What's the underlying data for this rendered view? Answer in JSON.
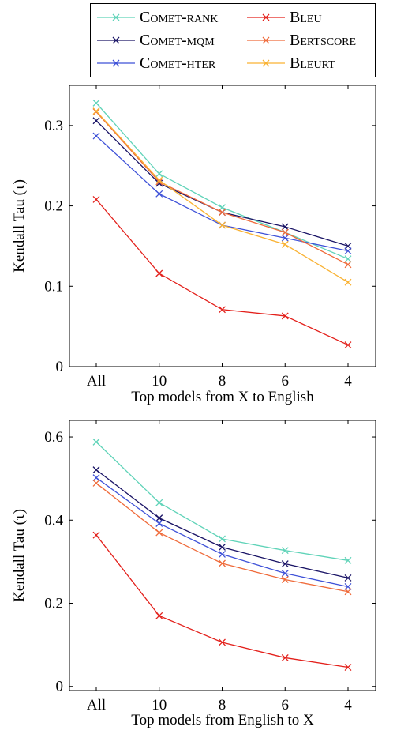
{
  "legend": {
    "items": [
      {
        "label": "Comet-rank",
        "color": "#5fd3b8"
      },
      {
        "label": "Comet-mqm",
        "color": "#1a1466"
      },
      {
        "label": "Comet-hter",
        "color": "#3f52d8"
      },
      {
        "label": "Bleu",
        "color": "#e3201b"
      },
      {
        "label": "Bertscore",
        "color": "#ef6a3a"
      },
      {
        "label": "Bleurt",
        "color": "#f9b233"
      }
    ]
  },
  "chart_data": [
    {
      "type": "line",
      "categories": [
        "All",
        "10",
        "8",
        "6",
        "4"
      ],
      "xlabel": "Top models from X to English",
      "ylabel": "Kendall Tau (τ)",
      "ylim": [
        0,
        0.35
      ],
      "yticks": [
        "0",
        "0.1",
        "0.2",
        "0.3"
      ],
      "ytick_values": [
        0,
        0.1,
        0.2,
        0.3
      ],
      "grid": false,
      "series": [
        {
          "name": "Comet-rank",
          "color": "#5fd3b8",
          "values": [
            0.328,
            0.24,
            0.198,
            0.167,
            0.134
          ]
        },
        {
          "name": "Comet-mqm",
          "color": "#1a1466",
          "values": [
            0.306,
            0.228,
            0.192,
            0.174,
            0.15
          ]
        },
        {
          "name": "Comet-hter",
          "color": "#3f52d8",
          "values": [
            0.287,
            0.215,
            0.176,
            0.16,
            0.144
          ]
        },
        {
          "name": "Bleu",
          "color": "#e3201b",
          "values": [
            0.208,
            0.116,
            0.071,
            0.063,
            0.027
          ]
        },
        {
          "name": "Bertscore",
          "color": "#ef6a3a",
          "values": [
            0.317,
            0.23,
            0.192,
            0.167,
            0.127
          ]
        },
        {
          "name": "Bleurt",
          "color": "#f9b233",
          "values": [
            0.318,
            0.232,
            0.176,
            0.152,
            0.105
          ]
        }
      ]
    },
    {
      "type": "line",
      "categories": [
        "All",
        "10",
        "8",
        "6",
        "4"
      ],
      "xlabel": "Top models from English to X",
      "ylabel": "Kendall Tau (τ)",
      "ylim": [
        -0.01,
        0.64
      ],
      "yticks": [
        "0",
        "0.2",
        "0.4",
        "0.6"
      ],
      "ytick_values": [
        0,
        0.2,
        0.4,
        0.6
      ],
      "grid": false,
      "series": [
        {
          "name": "Comet-rank",
          "color": "#5fd3b8",
          "values": [
            0.588,
            0.442,
            0.355,
            0.327,
            0.303
          ]
        },
        {
          "name": "Comet-mqm",
          "color": "#1a1466",
          "values": [
            0.521,
            0.405,
            0.335,
            0.295,
            0.261
          ]
        },
        {
          "name": "Comet-hter",
          "color": "#3f52d8",
          "values": [
            0.502,
            0.392,
            0.318,
            0.272,
            0.24
          ]
        },
        {
          "name": "Bleu",
          "color": "#e3201b",
          "values": [
            0.364,
            0.17,
            0.106,
            0.069,
            0.046
          ]
        },
        {
          "name": "Bertscore",
          "color": "#ef6a3a",
          "values": [
            0.489,
            0.37,
            0.296,
            0.257,
            0.228
          ]
        }
      ]
    }
  ]
}
